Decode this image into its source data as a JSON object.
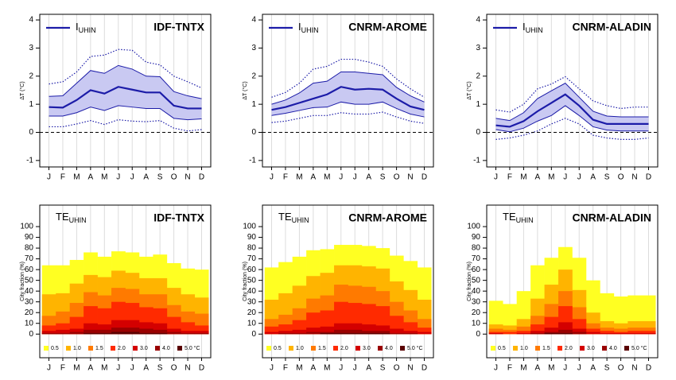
{
  "chart_data": [
    {
      "type": "line",
      "title": "IDF-TNTX",
      "ylabel": "ΔT (°C)",
      "categories": [
        "J",
        "F",
        "M",
        "A",
        "M",
        "J",
        "J",
        "A",
        "S",
        "O",
        "N",
        "D"
      ],
      "ylim": [
        -1.23,
        4.2
      ],
      "yticks": [
        -1,
        0,
        1,
        2,
        3,
        4
      ],
      "reference_line": 0,
      "series": [
        {
          "name": "I",
          "name_sub": "UHIN",
          "color": "#1c1ca8",
          "values": [
            0.9,
            0.88,
            1.15,
            1.5,
            1.38,
            1.62,
            1.52,
            1.42,
            1.42,
            0.95,
            0.85,
            0.85
          ]
        }
      ],
      "band": {
        "color": "#c9c9f2",
        "upper": [
          1.28,
          1.3,
          1.75,
          2.2,
          2.1,
          2.38,
          2.25,
          2.0,
          1.98,
          1.45,
          1.3,
          1.2
        ],
        "lower": [
          0.58,
          0.58,
          0.7,
          0.9,
          0.78,
          0.95,
          0.9,
          0.85,
          0.85,
          0.5,
          0.45,
          0.48
        ]
      },
      "outer": {
        "upper": [
          1.72,
          1.8,
          2.15,
          2.7,
          2.75,
          2.95,
          2.92,
          2.5,
          2.4,
          2.0,
          1.8,
          1.58
        ],
        "lower": [
          0.2,
          0.2,
          0.3,
          0.42,
          0.28,
          0.45,
          0.4,
          0.38,
          0.42,
          0.15,
          0.05,
          0.1
        ]
      }
    },
    {
      "type": "line",
      "title": "CNRM-AROME",
      "ylabel": "ΔT (°C)",
      "categories": [
        "J",
        "F",
        "M",
        "A",
        "M",
        "J",
        "J",
        "A",
        "S",
        "O",
        "N",
        "D"
      ],
      "ylim": [
        -1.23,
        4.2
      ],
      "yticks": [
        -1,
        0,
        1,
        2,
        3,
        4
      ],
      "reference_line": 0,
      "series": [
        {
          "name": "I",
          "name_sub": "UHIN",
          "color": "#1c1ca8",
          "values": [
            0.8,
            0.9,
            1.05,
            1.2,
            1.35,
            1.62,
            1.52,
            1.55,
            1.52,
            1.2,
            0.92,
            0.8
          ]
        }
      ],
      "band": {
        "color": "#c9c9f2",
        "upper": [
          1.0,
          1.15,
          1.4,
          1.75,
          1.82,
          2.15,
          2.15,
          2.1,
          2.05,
          1.6,
          1.3,
          1.08
        ],
        "lower": [
          0.6,
          0.68,
          0.78,
          0.88,
          0.9,
          1.08,
          1.0,
          1.0,
          1.08,
          0.85,
          0.65,
          0.55
        ]
      },
      "outer": {
        "upper": [
          1.25,
          1.42,
          1.75,
          2.25,
          2.35,
          2.6,
          2.6,
          2.5,
          2.35,
          1.9,
          1.55,
          1.25
        ],
        "lower": [
          0.35,
          0.4,
          0.5,
          0.6,
          0.6,
          0.7,
          0.65,
          0.65,
          0.72,
          0.55,
          0.4,
          0.32
        ]
      }
    },
    {
      "type": "line",
      "title": "CNRM-ALADIN",
      "ylabel": "ΔT (°C)",
      "categories": [
        "J",
        "F",
        "M",
        "A",
        "M",
        "J",
        "J",
        "A",
        "S",
        "O",
        "N",
        "D"
      ],
      "ylim": [
        -1.23,
        4.2
      ],
      "yticks": [
        -1,
        0,
        1,
        2,
        3,
        4
      ],
      "reference_line": 0,
      "series": [
        {
          "name": "I",
          "name_sub": "UHIN",
          "color": "#1c1ca8",
          "values": [
            0.25,
            0.2,
            0.4,
            0.75,
            1.05,
            1.35,
            0.95,
            0.45,
            0.3,
            0.3,
            0.3,
            0.3
          ]
        }
      ],
      "band": {
        "color": "#c9c9f2",
        "upper": [
          0.5,
          0.42,
          0.7,
          1.2,
          1.48,
          1.75,
          1.25,
          0.75,
          0.58,
          0.55,
          0.55,
          0.55
        ],
        "lower": [
          0.1,
          0.02,
          0.15,
          0.4,
          0.6,
          0.95,
          0.6,
          0.2,
          0.08,
          0.05,
          0.05,
          0.05
        ]
      },
      "outer": {
        "upper": [
          0.8,
          0.72,
          1.0,
          1.55,
          1.72,
          1.98,
          1.55,
          1.12,
          0.95,
          0.85,
          0.9,
          0.9
        ],
        "lower": [
          -0.25,
          -0.2,
          -0.1,
          0.05,
          0.3,
          0.5,
          0.3,
          -0.1,
          -0.2,
          -0.25,
          -0.25,
          -0.2
        ]
      }
    },
    {
      "type": "bar",
      "title": "IDF-TNTX",
      "ylabel": "City fraction (%)",
      "legend_title": "TE",
      "legend_sub": "UHIN",
      "categories": [
        "J",
        "F",
        "M",
        "A",
        "M",
        "J",
        "J",
        "A",
        "S",
        "O",
        "N",
        "D"
      ],
      "ylim": [
        -22,
        120
      ],
      "yticks": [
        0,
        10,
        20,
        30,
        40,
        50,
        60,
        70,
        80,
        90,
        100
      ],
      "series": [
        {
          "name": "0.5",
          "color": "#ffff22",
          "values": [
            64,
            64,
            69,
            76,
            72,
            77,
            76,
            72,
            74,
            66,
            61,
            60
          ]
        },
        {
          "name": "1.0",
          "color": "#ffb400",
          "values": [
            37,
            38,
            47,
            55,
            53,
            59,
            57,
            52,
            52,
            43,
            37,
            34
          ]
        },
        {
          "name": "1.5",
          "color": "#ff7a00",
          "values": [
            17,
            21,
            29,
            39,
            36,
            43,
            42,
            37,
            37,
            27,
            21,
            19
          ]
        },
        {
          "name": "2.0",
          "color": "#ff2a00",
          "values": [
            8,
            10,
            16,
            26,
            24,
            30,
            29,
            25,
            24,
            16,
            11,
            8
          ]
        },
        {
          "name": "3.0",
          "color": "#d40000",
          "values": [
            3,
            4,
            5,
            10,
            9,
            13,
            13,
            11,
            10,
            5,
            3,
            3
          ]
        },
        {
          "name": "4.0",
          "color": "#9a0000",
          "values": [
            1,
            1,
            2,
            4,
            4,
            6,
            6,
            5,
            4,
            2,
            1,
            1
          ]
        },
        {
          "name": "5.0 °C",
          "color": "#5a0000",
          "values": [
            0,
            0,
            0,
            1,
            1,
            2,
            2,
            1,
            1,
            0,
            0,
            0
          ]
        }
      ]
    },
    {
      "type": "bar",
      "title": "CNRM-AROME",
      "ylabel": "City fraction (%)",
      "legend_title": "TE",
      "legend_sub": "UHIN",
      "categories": [
        "J",
        "F",
        "M",
        "A",
        "M",
        "J",
        "J",
        "A",
        "S",
        "O",
        "N",
        "D"
      ],
      "ylim": [
        -22,
        120
      ],
      "yticks": [
        0,
        10,
        20,
        30,
        40,
        50,
        60,
        70,
        80,
        90,
        100
      ],
      "series": [
        {
          "name": "0.5",
          "color": "#ffff22",
          "values": [
            62,
            67,
            72,
            78,
            79,
            83,
            83,
            82,
            80,
            73,
            68,
            62
          ]
        },
        {
          "name": "1.0",
          "color": "#ffb400",
          "values": [
            32,
            38,
            45,
            54,
            57,
            64,
            64,
            63,
            61,
            49,
            41,
            32
          ]
        },
        {
          "name": "1.5",
          "color": "#ff7a00",
          "values": [
            14,
            18,
            24,
            33,
            36,
            46,
            45,
            44,
            40,
            30,
            22,
            14
          ]
        },
        {
          "name": "2.0",
          "color": "#ff2a00",
          "values": [
            7,
            9,
            13,
            20,
            22,
            30,
            29,
            28,
            26,
            17,
            11,
            6
          ]
        },
        {
          "name": "3.0",
          "color": "#d40000",
          "values": [
            2,
            3,
            4,
            6,
            7,
            10,
            10,
            9,
            8,
            5,
            3,
            2
          ]
        },
        {
          "name": "4.0",
          "color": "#9a0000",
          "values": [
            0,
            1,
            1,
            2,
            2,
            4,
            4,
            3,
            3,
            1,
            1,
            0
          ]
        },
        {
          "name": "5.0 °C",
          "color": "#5a0000",
          "values": [
            0,
            0,
            0,
            0,
            1,
            1,
            1,
            1,
            1,
            0,
            0,
            0
          ]
        }
      ]
    },
    {
      "type": "bar",
      "title": "CNRM-ALADIN",
      "ylabel": "City fraction (%)",
      "legend_title": "TE",
      "legend_sub": "UHIN",
      "categories": [
        "J",
        "F",
        "M",
        "A",
        "M",
        "J",
        "J",
        "A",
        "S",
        "O",
        "N",
        "D"
      ],
      "ylim": [
        -22,
        120
      ],
      "yticks": [
        0,
        10,
        20,
        30,
        40,
        50,
        60,
        70,
        80,
        90,
        100
      ],
      "series": [
        {
          "name": "0.5",
          "color": "#ffff22",
          "values": [
            31,
            28,
            40,
            64,
            71,
            81,
            71,
            50,
            38,
            35,
            36,
            36
          ]
        },
        {
          "name": "1.0",
          "color": "#ffb400",
          "values": [
            9,
            8,
            14,
            33,
            46,
            60,
            41,
            20,
            12,
            10,
            12,
            12
          ]
        },
        {
          "name": "1.5",
          "color": "#ff7a00",
          "values": [
            5,
            4,
            7,
            17,
            28,
            40,
            25,
            10,
            6,
            5,
            6,
            6
          ]
        },
        {
          "name": "2.0",
          "color": "#ff2a00",
          "values": [
            2,
            2,
            3,
            9,
            16,
            26,
            14,
            5,
            3,
            2,
            3,
            3
          ]
        },
        {
          "name": "3.0",
          "color": "#d40000",
          "values": [
            1,
            0,
            1,
            3,
            6,
            11,
            5,
            2,
            1,
            1,
            1,
            1
          ]
        },
        {
          "name": "4.0",
          "color": "#9a0000",
          "values": [
            0,
            0,
            0,
            1,
            2,
            4,
            2,
            0,
            0,
            0,
            0,
            0
          ]
        },
        {
          "name": "5.0 °C",
          "color": "#5a0000",
          "values": [
            0,
            0,
            0,
            0,
            1,
            1,
            0,
            0,
            0,
            0,
            0,
            0
          ]
        }
      ]
    }
  ]
}
